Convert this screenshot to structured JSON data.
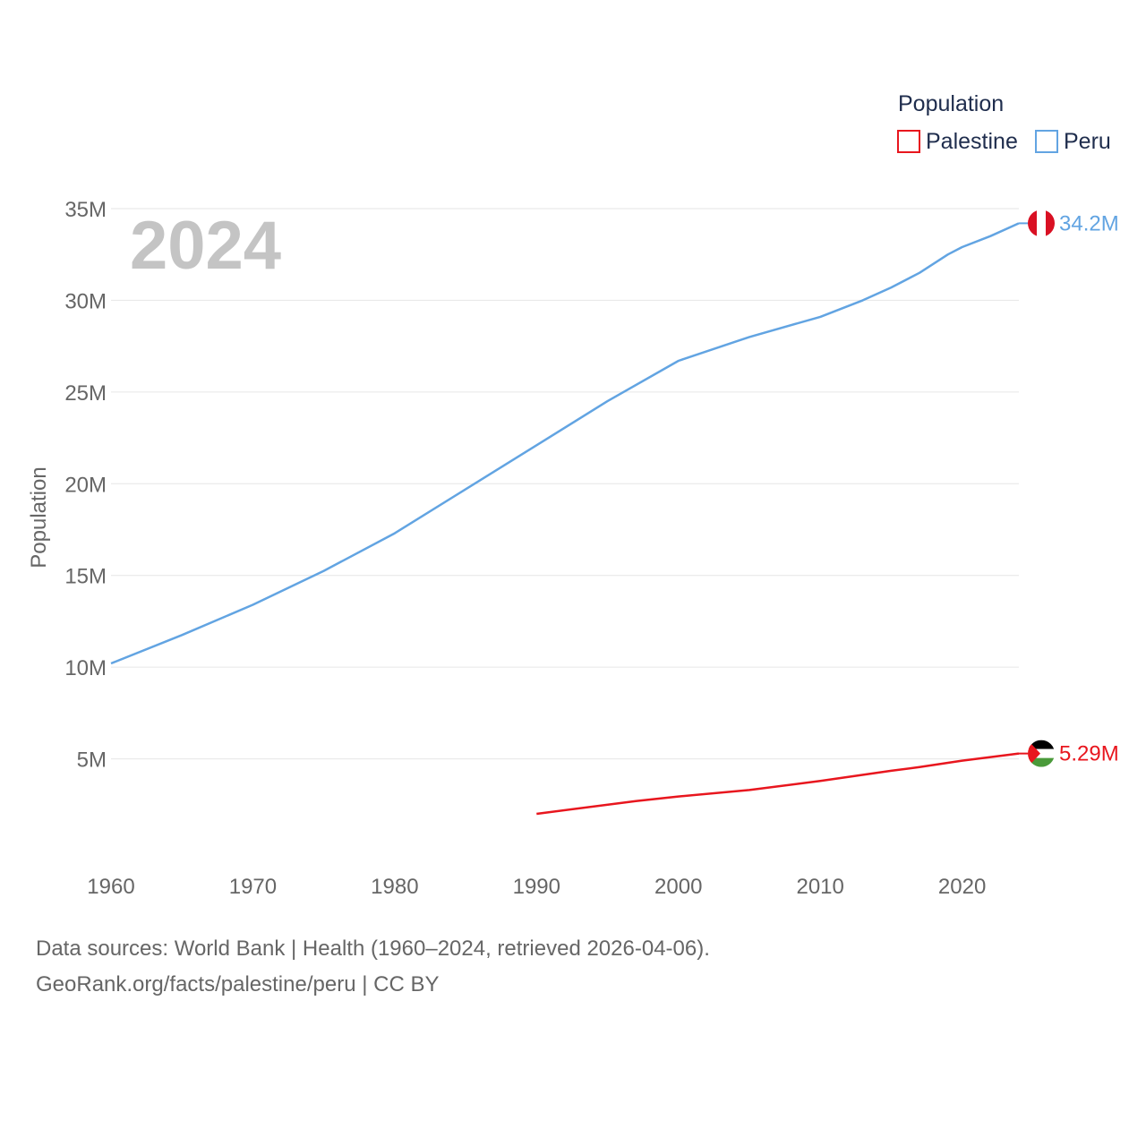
{
  "chart_data": {
    "type": "line",
    "title": "",
    "year_label": "2024",
    "ylabel": "Population",
    "xlabel": "",
    "xlim": [
      1960,
      2024
    ],
    "ylim": [
      0,
      35000000
    ],
    "x_ticks": [
      1960,
      1970,
      1980,
      1990,
      2000,
      2010,
      2020
    ],
    "x_tick_labels": [
      "1960",
      "1970",
      "1980",
      "1990",
      "2000",
      "2010",
      "2020"
    ],
    "y_ticks": [
      5000000,
      10000000,
      15000000,
      20000000,
      25000000,
      30000000,
      35000000
    ],
    "y_tick_labels": [
      "5M",
      "10M",
      "15M",
      "20M",
      "25M",
      "30M",
      "35M"
    ],
    "grid": true,
    "legend": {
      "title": "Population",
      "position": "top-right",
      "entries": [
        {
          "name": "Palestine",
          "color": "#e8161e"
        },
        {
          "name": "Peru",
          "color": "#62a4e2"
        }
      ]
    },
    "series": [
      {
        "name": "Peru",
        "color": "#62a4e2",
        "end_label": "34.2M",
        "flag": "peru",
        "points": [
          [
            1960,
            10200000
          ],
          [
            1965,
            11750000
          ],
          [
            1970,
            13400000
          ],
          [
            1975,
            15250000
          ],
          [
            1980,
            17300000
          ],
          [
            1985,
            19700000
          ],
          [
            1990,
            22100000
          ],
          [
            1995,
            24500000
          ],
          [
            2000,
            26700000
          ],
          [
            2005,
            28000000
          ],
          [
            2010,
            29100000
          ],
          [
            2013,
            30000000
          ],
          [
            2015,
            30700000
          ],
          [
            2017,
            31500000
          ],
          [
            2019,
            32500000
          ],
          [
            2020,
            32900000
          ],
          [
            2022,
            33500000
          ],
          [
            2024,
            34200000
          ]
        ]
      },
      {
        "name": "Palestine",
        "color": "#e8161e",
        "end_label": "5.29M",
        "flag": "palestine",
        "points": [
          [
            1990,
            2000000
          ],
          [
            1997,
            2700000
          ],
          [
            2000,
            2950000
          ],
          [
            2005,
            3300000
          ],
          [
            2010,
            3800000
          ],
          [
            2015,
            4350000
          ],
          [
            2017,
            4550000
          ],
          [
            2020,
            4900000
          ],
          [
            2024,
            5290000
          ]
        ]
      }
    ]
  },
  "footer": {
    "line1": "Data sources: World Bank | Health (1960–2024, retrieved 2026-04-06).",
    "line2": "GeoRank.org/facts/palestine/peru | CC BY"
  }
}
